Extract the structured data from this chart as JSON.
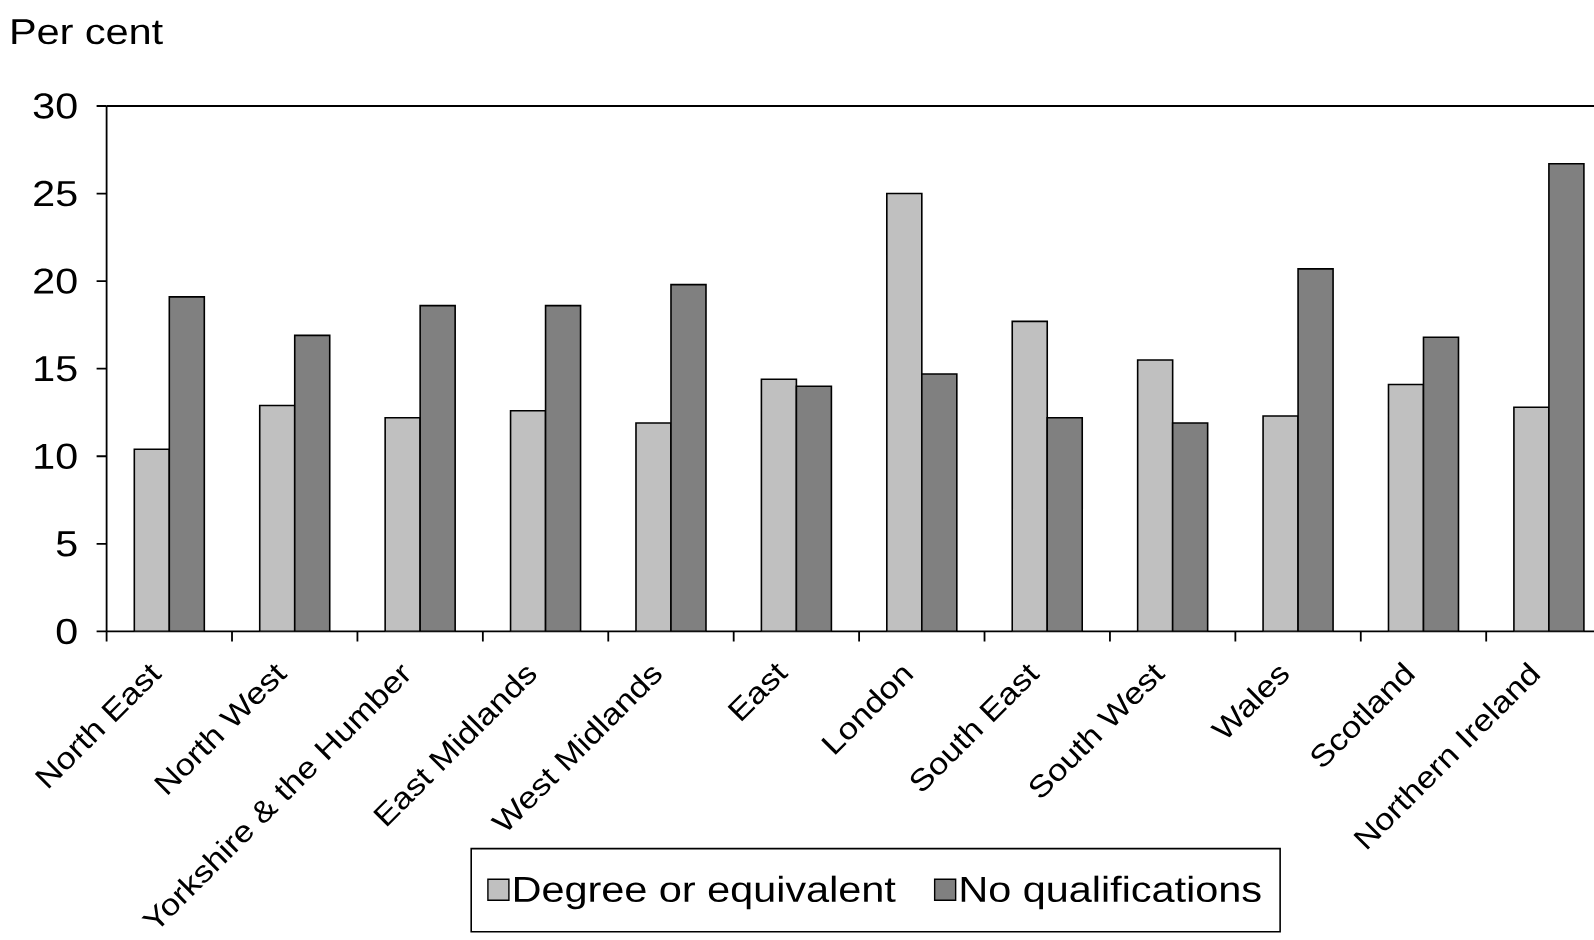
{
  "chart_data": {
    "type": "bar",
    "ylabel": "Per cent",
    "categories": [
      "North East",
      "North West",
      "Yorkshire & the Humber",
      "East Midlands",
      "West Midlands",
      "East",
      "London",
      "South East",
      "South West",
      "Wales",
      "Scotland",
      "Northern Ireland"
    ],
    "series": [
      {
        "name": "Degree or equivalent",
        "color": "#c0c0c0",
        "values": [
          10.4,
          12.9,
          12.2,
          12.6,
          11.9,
          14.4,
          25.0,
          17.7,
          15.5,
          12.3,
          14.1,
          12.8
        ]
      },
      {
        "name": "No qualifications",
        "color": "#808080",
        "values": [
          19.1,
          16.9,
          18.6,
          18.6,
          19.8,
          14.0,
          14.7,
          12.2,
          11.9,
          20.7,
          16.8,
          26.7
        ]
      }
    ],
    "ylim": [
      0,
      30
    ],
    "yticks": [
      0,
      5,
      10,
      15,
      20,
      25,
      30
    ],
    "legend": "bottom"
  }
}
